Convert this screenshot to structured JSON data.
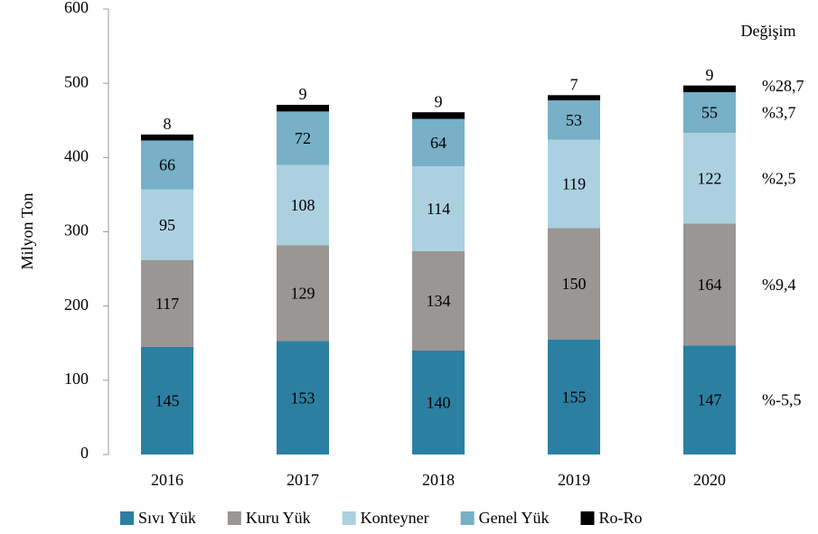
{
  "chart_data": {
    "type": "stacked_bar",
    "y_label": "Milyon Ton",
    "annotation_title": "Değişim",
    "categories": [
      "2016",
      "2017",
      "2018",
      "2019",
      "2020"
    ],
    "series": [
      {
        "name": "Sıvı Yük",
        "color": "#2b80a2",
        "values": [
          145,
          153,
          140,
          155,
          147
        ],
        "change": "%-5,5"
      },
      {
        "name": "Kuru Yük",
        "color": "#9a9694",
        "values": [
          117,
          129,
          134,
          150,
          164
        ],
        "change": "%9,4"
      },
      {
        "name": "Konteyner",
        "color": "#abd1e1",
        "values": [
          95,
          108,
          114,
          119,
          122
        ],
        "change": "%2,5"
      },
      {
        "name": "Genel Yük",
        "color": "#77b0c7",
        "values": [
          66,
          72,
          64,
          53,
          55
        ],
        "change": "%3,7"
      },
      {
        "name": "Ro-Ro",
        "color": "#000000",
        "values": [
          8,
          9,
          9,
          7,
          9
        ],
        "change": "%28,7"
      }
    ],
    "ylim": [
      0,
      600
    ],
    "yticks": [
      0,
      100,
      200,
      300,
      400,
      500,
      600
    ],
    "grid": false
  }
}
